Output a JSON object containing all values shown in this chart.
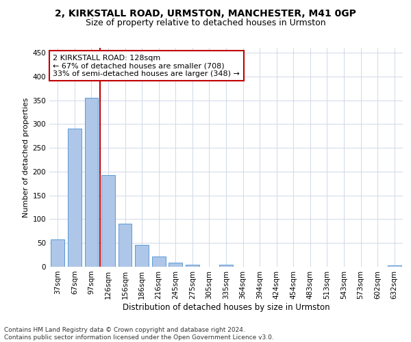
{
  "title1": "2, KIRKSTALL ROAD, URMSTON, MANCHESTER, M41 0GP",
  "title2": "Size of property relative to detached houses in Urmston",
  "xlabel": "Distribution of detached houses by size in Urmston",
  "ylabel": "Number of detached properties",
  "categories": [
    "37sqm",
    "67sqm",
    "97sqm",
    "126sqm",
    "156sqm",
    "186sqm",
    "216sqm",
    "245sqm",
    "275sqm",
    "305sqm",
    "335sqm",
    "364sqm",
    "394sqm",
    "424sqm",
    "454sqm",
    "483sqm",
    "513sqm",
    "543sqm",
    "573sqm",
    "602sqm",
    "632sqm"
  ],
  "values": [
    57,
    290,
    355,
    192,
    91,
    46,
    21,
    9,
    4,
    0,
    5,
    0,
    0,
    0,
    0,
    0,
    0,
    0,
    0,
    0,
    3
  ],
  "bar_color": "#aec6e8",
  "bar_edge_color": "#5b9bd5",
  "vline_color": "#c00000",
  "annotation_line1": "2 KIRKSTALL ROAD: 128sqm",
  "annotation_line2": "← 67% of detached houses are smaller (708)",
  "annotation_line3": "33% of semi-detached houses are larger (348) →",
  "annotation_box_color": "#ffffff",
  "annotation_box_edge": "#c00000",
  "ylim": [
    0,
    460
  ],
  "background_color": "#ffffff",
  "grid_color": "#d0d8e8",
  "footer": "Contains HM Land Registry data © Crown copyright and database right 2024.\nContains public sector information licensed under the Open Government Licence v3.0.",
  "title1_fontsize": 10,
  "title2_fontsize": 9,
  "xlabel_fontsize": 8.5,
  "ylabel_fontsize": 8,
  "tick_fontsize": 7.5,
  "annotation_fontsize": 8,
  "footer_fontsize": 6.5
}
